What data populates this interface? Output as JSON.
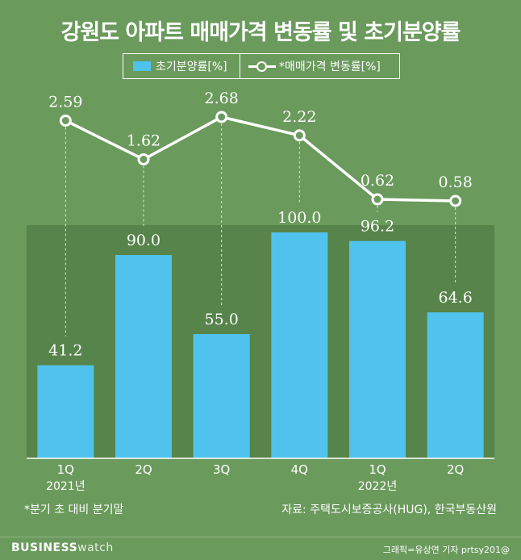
{
  "title": "강원도 아파트 매매가격 변동률 및 초기분양률",
  "legend": {
    "bar_label": "초기분양률[%]",
    "line_label": "*매매가격 변동률[%]"
  },
  "chart_data": {
    "type": "bar+line",
    "categories": [
      "1Q",
      "2Q",
      "3Q",
      "4Q",
      "1Q",
      "2Q"
    ],
    "year_labels": [
      "2021년",
      "",
      "",
      "",
      "2022년",
      ""
    ],
    "series": [
      {
        "name": "초기분양률[%]",
        "type": "bar",
        "values": [
          41.2,
          90.0,
          55.0,
          100.0,
          96.2,
          64.6
        ],
        "labels": [
          "41.2",
          "90.0",
          "55.0",
          "100.0",
          "96.2",
          "64.6"
        ]
      },
      {
        "name": "*매매가격 변동률[%]",
        "type": "line",
        "values": [
          2.59,
          1.62,
          2.68,
          2.22,
          0.62,
          0.58
        ],
        "labels": [
          "2.59",
          "1.62",
          "2.68",
          "2.22",
          "0.62",
          "0.58"
        ]
      }
    ],
    "bar_ylim": [
      0,
      100
    ],
    "line_ylim": [
      0.58,
      2.68
    ]
  },
  "colors": {
    "background": "#6a9a5c",
    "plot_area": "#56844a",
    "bar": "#4fc3ee",
    "line": "#ffffff"
  },
  "footnote_left": "*분기 초 대비 분기말",
  "footnote_right": "자료: 주택도시보증공사(HUG), 한국부동산원",
  "brand_bold": "BUSINESS",
  "brand_light": "watch",
  "credit": "그래픽=유상연 기자 prtsy201@"
}
